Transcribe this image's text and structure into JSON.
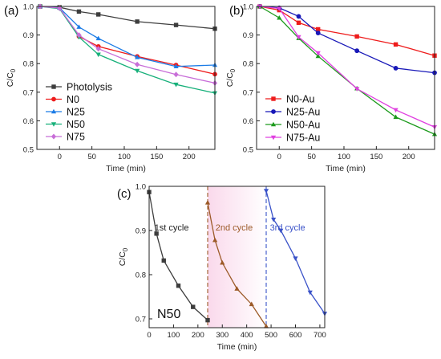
{
  "chart_data": [
    {
      "panel": "(a)",
      "type": "line",
      "xlabel": "Time (min)",
      "ylabel": "C/C0",
      "xlim": [
        -35,
        240
      ],
      "ylim": [
        0.5,
        1.0
      ],
      "xticks": [
        0,
        50,
        100,
        150,
        200
      ],
      "yticks": [
        0.5,
        0.6,
        0.7,
        0.8,
        0.9,
        1.0
      ],
      "legend_position": "bottom-left",
      "series": [
        {
          "name": "Photolysis",
          "color": "#3d3d3d",
          "marker": "square",
          "x": [
            -30,
            0,
            30,
            60,
            120,
            180,
            240
          ],
          "y": [
            1.0,
            0.997,
            0.982,
            0.972,
            0.947,
            0.935,
            0.922
          ]
        },
        {
          "name": "N0",
          "color": "#ee1c1c",
          "marker": "circle",
          "x": [
            -30,
            0,
            30,
            60,
            120,
            180,
            240
          ],
          "y": [
            1.0,
            0.995,
            0.895,
            0.86,
            0.825,
            0.795,
            0.763
          ]
        },
        {
          "name": "N25",
          "color": "#1c7ce6",
          "marker": "triangle-up",
          "x": [
            -30,
            0,
            30,
            60,
            120,
            180,
            240
          ],
          "y": [
            1.0,
            0.995,
            0.928,
            0.888,
            0.822,
            0.79,
            0.795
          ]
        },
        {
          "name": "N50",
          "color": "#17b07a",
          "marker": "triangle-down",
          "x": [
            -30,
            0,
            30,
            60,
            120,
            180,
            240
          ],
          "y": [
            1.0,
            0.992,
            0.893,
            0.832,
            0.775,
            0.727,
            0.697
          ]
        },
        {
          "name": "N75",
          "color": "#c86ed8",
          "marker": "diamond",
          "x": [
            -30,
            0,
            30,
            60,
            120,
            180,
            240
          ],
          "y": [
            1.0,
            0.994,
            0.9,
            0.852,
            0.797,
            0.762,
            0.732
          ]
        }
      ]
    },
    {
      "panel": "(b)",
      "type": "line",
      "xlabel": "Time (min)",
      "ylabel": "C/C0",
      "xlim": [
        -35,
        240
      ],
      "ylim": [
        0.5,
        1.0
      ],
      "xticks": [
        0,
        50,
        100,
        150,
        200
      ],
      "yticks": [
        0.5,
        0.6,
        0.7,
        0.8,
        0.9,
        1.0
      ],
      "legend_position": "bottom-left",
      "series": [
        {
          "name": "N0-Au",
          "color": "#ee1c1c",
          "marker": "square",
          "x": [
            -30,
            0,
            30,
            60,
            120,
            180,
            240
          ],
          "y": [
            1.0,
            0.987,
            0.943,
            0.92,
            0.895,
            0.867,
            0.828
          ]
        },
        {
          "name": "N25-Au",
          "color": "#1818b8",
          "marker": "circle",
          "x": [
            -30,
            0,
            30,
            60,
            120,
            180,
            240
          ],
          "y": [
            1.0,
            0.995,
            0.965,
            0.907,
            0.845,
            0.784,
            0.768
          ]
        },
        {
          "name": "N50-Au",
          "color": "#1c9a1c",
          "marker": "triangle-up",
          "x": [
            -30,
            0,
            30,
            60,
            120,
            180,
            240
          ],
          "y": [
            1.0,
            0.96,
            0.889,
            0.826,
            0.713,
            0.613,
            0.553
          ]
        },
        {
          "name": "N75-Au",
          "color": "#e040e0",
          "marker": "triangle-down",
          "x": [
            -30,
            0,
            30,
            60,
            120,
            180,
            240
          ],
          "y": [
            1.0,
            0.993,
            0.893,
            0.837,
            0.712,
            0.638,
            0.578
          ]
        }
      ]
    },
    {
      "panel": "(c)",
      "type": "line",
      "xlabel": "Time (min)",
      "ylabel": "C/C0",
      "xlim": [
        0,
        720
      ],
      "ylim": [
        0.68,
        1.0
      ],
      "xticks": [
        0,
        100,
        200,
        300,
        400,
        500,
        600,
        700
      ],
      "yticks": [
        0.7,
        0.8,
        0.9,
        1.0
      ],
      "sample_label": "N50",
      "cycle_boundaries": [
        240,
        480
      ],
      "series": [
        {
          "name": "1st cycle",
          "color": "#3d3d3d",
          "marker": "square",
          "x": [
            0,
            30,
            60,
            120,
            180,
            240
          ],
          "y": [
            0.987,
            0.893,
            0.832,
            0.775,
            0.727,
            0.697
          ]
        },
        {
          "name": "2nd cycle",
          "color": "#9c5a28",
          "marker": "triangle-up",
          "x": [
            240,
            270,
            300,
            360,
            420,
            480
          ],
          "y": [
            0.963,
            0.878,
            0.827,
            0.768,
            0.733,
            0.683
          ]
        },
        {
          "name": "3rd cycle",
          "color": "#3a52c8",
          "marker": "triangle-down",
          "x": [
            480,
            510,
            540,
            600,
            660,
            720
          ],
          "y": [
            0.99,
            0.925,
            0.9,
            0.837,
            0.76,
            0.712
          ]
        }
      ]
    }
  ]
}
